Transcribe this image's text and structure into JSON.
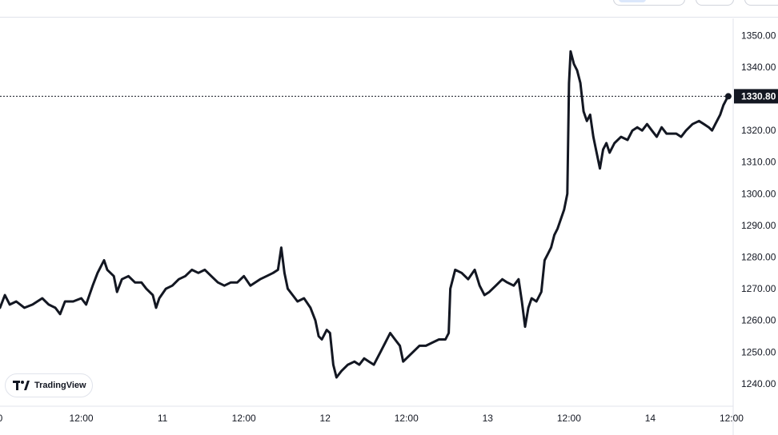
{
  "chart_data": {
    "type": "line",
    "title": "",
    "xlabel": "",
    "ylabel": "",
    "ylim": [
      1232.9,
      1355.4
    ],
    "xlim": [
      0,
      4.51
    ],
    "x_tick_labels": [
      "0",
      "12:00",
      "11",
      "12:00",
      "12",
      "12:00",
      "13",
      "12:00",
      "14",
      "12:00"
    ],
    "x_tick_values": [
      0,
      0.5,
      1,
      1.5,
      2,
      2.5,
      3,
      3.5,
      4,
      4.5
    ],
    "y_tick_labels": [
      "1350.00",
      "1340.00",
      "1330.00",
      "1320.00",
      "1310.00",
      "1300.00",
      "1290.00",
      "1280.00",
      "1270.00",
      "1260.00",
      "1250.00",
      "1240.00"
    ],
    "y_tick_values": [
      1350,
      1340,
      1330,
      1320,
      1310,
      1300,
      1290,
      1280,
      1270,
      1260,
      1250,
      1240
    ],
    "last_price": 1330.8,
    "last_price_label": "1330.80",
    "series": [
      {
        "values": [
          [
            0.0,
            1264
          ],
          [
            0.03,
            1268
          ],
          [
            0.06,
            1265
          ],
          [
            0.1,
            1266
          ],
          [
            0.15,
            1264
          ],
          [
            0.2,
            1265
          ],
          [
            0.26,
            1267
          ],
          [
            0.3,
            1265
          ],
          [
            0.34,
            1264
          ],
          [
            0.37,
            1262
          ],
          [
            0.4,
            1266
          ],
          [
            0.45,
            1266
          ],
          [
            0.5,
            1267
          ],
          [
            0.53,
            1265
          ],
          [
            0.55,
            1268
          ],
          [
            0.57,
            1271
          ],
          [
            0.6,
            1275
          ],
          [
            0.64,
            1279
          ],
          [
            0.66,
            1276
          ],
          [
            0.7,
            1274
          ],
          [
            0.72,
            1269
          ],
          [
            0.75,
            1273
          ],
          [
            0.79,
            1274
          ],
          [
            0.83,
            1272
          ],
          [
            0.87,
            1272
          ],
          [
            0.9,
            1270
          ],
          [
            0.94,
            1268
          ],
          [
            0.96,
            1264
          ],
          [
            0.98,
            1267
          ],
          [
            1.02,
            1270
          ],
          [
            1.06,
            1271
          ],
          [
            1.1,
            1273
          ],
          [
            1.14,
            1274
          ],
          [
            1.18,
            1276
          ],
          [
            1.22,
            1275
          ],
          [
            1.26,
            1276
          ],
          [
            1.3,
            1274
          ],
          [
            1.34,
            1272
          ],
          [
            1.38,
            1271
          ],
          [
            1.42,
            1272
          ],
          [
            1.46,
            1272
          ],
          [
            1.5,
            1274
          ],
          [
            1.54,
            1271
          ],
          [
            1.57,
            1272
          ],
          [
            1.6,
            1273
          ],
          [
            1.64,
            1274
          ],
          [
            1.68,
            1275
          ],
          [
            1.71,
            1276
          ],
          [
            1.73,
            1283
          ],
          [
            1.75,
            1275
          ],
          [
            1.77,
            1270
          ],
          [
            1.8,
            1268
          ],
          [
            1.83,
            1266
          ],
          [
            1.87,
            1267
          ],
          [
            1.91,
            1264
          ],
          [
            1.94,
            1260
          ],
          [
            1.96,
            1255
          ],
          [
            1.98,
            1254
          ],
          [
            2.01,
            1257
          ],
          [
            2.03,
            1256
          ],
          [
            2.05,
            1246
          ],
          [
            2.07,
            1242
          ],
          [
            2.1,
            1244
          ],
          [
            2.14,
            1246
          ],
          [
            2.18,
            1247
          ],
          [
            2.21,
            1246
          ],
          [
            2.24,
            1248
          ],
          [
            2.27,
            1247
          ],
          [
            2.3,
            1246
          ],
          [
            2.34,
            1250
          ],
          [
            2.37,
            1253
          ],
          [
            2.4,
            1256
          ],
          [
            2.43,
            1254
          ],
          [
            2.46,
            1252
          ],
          [
            2.48,
            1247
          ],
          [
            2.5,
            1248
          ],
          [
            2.54,
            1250
          ],
          [
            2.58,
            1252
          ],
          [
            2.62,
            1252
          ],
          [
            2.66,
            1253
          ],
          [
            2.7,
            1254
          ],
          [
            2.74,
            1254
          ],
          [
            2.76,
            1256
          ],
          [
            2.77,
            1270
          ],
          [
            2.8,
            1276
          ],
          [
            2.84,
            1275
          ],
          [
            2.88,
            1273
          ],
          [
            2.92,
            1276
          ],
          [
            2.95,
            1271
          ],
          [
            2.98,
            1268
          ],
          [
            3.01,
            1269
          ],
          [
            3.05,
            1271
          ],
          [
            3.09,
            1273
          ],
          [
            3.12,
            1272
          ],
          [
            3.16,
            1271
          ],
          [
            3.19,
            1273
          ],
          [
            3.21,
            1266
          ],
          [
            3.23,
            1258
          ],
          [
            3.25,
            1264
          ],
          [
            3.27,
            1267
          ],
          [
            3.3,
            1266
          ],
          [
            3.33,
            1269
          ],
          [
            3.35,
            1279
          ],
          [
            3.37,
            1281
          ],
          [
            3.39,
            1283
          ],
          [
            3.41,
            1287
          ],
          [
            3.43,
            1289
          ],
          [
            3.45,
            1292
          ],
          [
            3.47,
            1295
          ],
          [
            3.49,
            1300
          ],
          [
            3.5,
            1335
          ],
          [
            3.51,
            1345
          ],
          [
            3.53,
            1341
          ],
          [
            3.55,
            1339
          ],
          [
            3.57,
            1335
          ],
          [
            3.59,
            1326
          ],
          [
            3.61,
            1323
          ],
          [
            3.63,
            1325
          ],
          [
            3.65,
            1318
          ],
          [
            3.67,
            1313
          ],
          [
            3.69,
            1308
          ],
          [
            3.71,
            1314
          ],
          [
            3.73,
            1316
          ],
          [
            3.75,
            1313
          ],
          [
            3.78,
            1316
          ],
          [
            3.82,
            1318
          ],
          [
            3.86,
            1317
          ],
          [
            3.89,
            1320
          ],
          [
            3.92,
            1321
          ],
          [
            3.95,
            1320
          ],
          [
            3.98,
            1322
          ],
          [
            4.01,
            1320
          ],
          [
            4.04,
            1318
          ],
          [
            4.07,
            1321
          ],
          [
            4.1,
            1319
          ],
          [
            4.13,
            1319
          ],
          [
            4.16,
            1319
          ],
          [
            4.19,
            1318
          ],
          [
            4.22,
            1320
          ],
          [
            4.26,
            1322
          ],
          [
            4.3,
            1323
          ],
          [
            4.33,
            1322
          ],
          [
            4.36,
            1321
          ],
          [
            4.38,
            1320
          ],
          [
            4.4,
            1322
          ],
          [
            4.43,
            1325
          ],
          [
            4.45,
            1328
          ],
          [
            4.47,
            1330
          ],
          [
            4.48,
            1330.8
          ]
        ]
      }
    ],
    "colors": {
      "line": "#131722",
      "grid_line": "#e0e3eb",
      "price_tag_bg": "#131722",
      "price_tag_text": "#ffffff",
      "dotted_line": "#131722"
    },
    "grid": false,
    "legend": "none"
  },
  "branding": {
    "logo_text": "TradingView",
    "logo_icon": "tradingview-logo-icon"
  }
}
